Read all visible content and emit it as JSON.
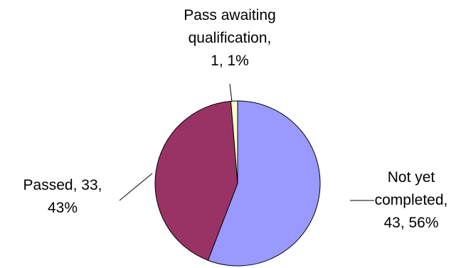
{
  "chart_data": {
    "type": "pie",
    "slices": [
      {
        "label": "Not yet completed",
        "value": 43,
        "percent": "56%",
        "color": "#9999ff",
        "label_lines": [
          "Not yet",
          "completed,",
          "43, 56%"
        ]
      },
      {
        "label": "Passed",
        "value": 33,
        "percent": "43%",
        "color": "#993366",
        "label_lines": [
          "Passed, 33,",
          "43%"
        ]
      },
      {
        "label": "Pass awaiting qualification",
        "value": 1,
        "percent": "1%",
        "color": "#ffffcc",
        "label_lines": [
          "Pass awaiting",
          "qualification,",
          "1, 1%"
        ]
      }
    ],
    "start_angle": "12 o'clock",
    "direction": "clockwise",
    "legend": "none"
  }
}
